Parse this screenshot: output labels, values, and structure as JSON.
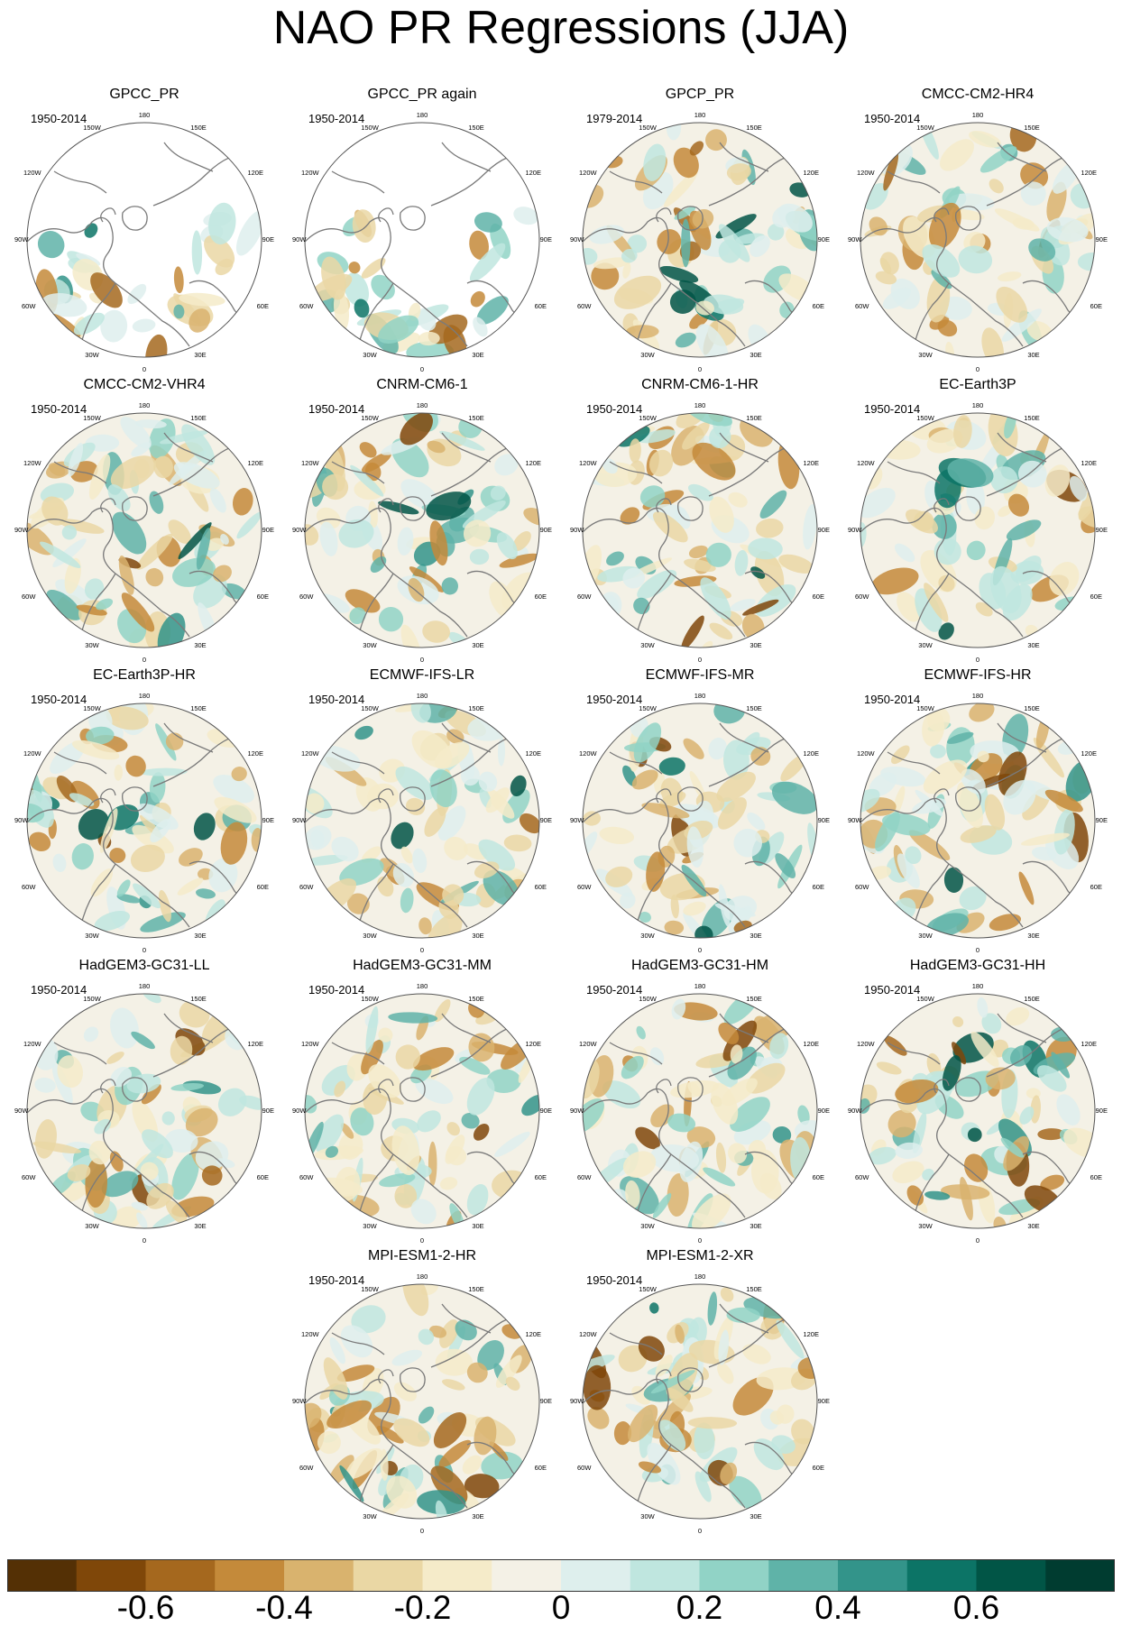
{
  "title": "NAO PR Regressions (JJA)",
  "grid_labels": {
    "top": "180",
    "upper_left": "150W",
    "upper_right": "150E",
    "mid_upper_left": "120W",
    "mid_upper_right": "120E",
    "left": "90W",
    "right": "90E",
    "lower_left": "60W",
    "lower_right": "60E",
    "bottom_left": "30W",
    "bottom_right": "30E",
    "bottom": "0"
  },
  "panels": [
    {
      "title": "GPCC_PR",
      "period": "1950-2014",
      "coverage": "land"
    },
    {
      "title": "GPCC_PR again",
      "period": "1950-2014",
      "coverage": "land"
    },
    {
      "title": "GPCP_PR",
      "period": "1979-2014",
      "coverage": "global"
    },
    {
      "title": "CMCC-CM2-HR4",
      "period": "1950-2014",
      "coverage": "global"
    },
    {
      "title": "CMCC-CM2-VHR4",
      "period": "1950-2014",
      "coverage": "global"
    },
    {
      "title": "CNRM-CM6-1",
      "period": "1950-2014",
      "coverage": "global"
    },
    {
      "title": "CNRM-CM6-1-HR",
      "period": "1950-2014",
      "coverage": "global"
    },
    {
      "title": "EC-Earth3P",
      "period": "1950-2014",
      "coverage": "global"
    },
    {
      "title": "EC-Earth3P-HR",
      "period": "1950-2014",
      "coverage": "global"
    },
    {
      "title": "ECMWF-IFS-LR",
      "period": "1950-2014",
      "coverage": "global"
    },
    {
      "title": "ECMWF-IFS-MR",
      "period": "1950-2014",
      "coverage": "global"
    },
    {
      "title": "ECMWF-IFS-HR",
      "period": "1950-2014",
      "coverage": "global"
    },
    {
      "title": "HadGEM3-GC31-LL",
      "period": "1950-2014",
      "coverage": "global"
    },
    {
      "title": "HadGEM3-GC31-MM",
      "period": "1950-2014",
      "coverage": "global"
    },
    {
      "title": "HadGEM3-GC31-HM",
      "period": "1950-2014",
      "coverage": "global"
    },
    {
      "title": "HadGEM3-GC31-HH",
      "period": "1950-2014",
      "coverage": "global"
    },
    {
      "title": "MPI-ESM1-2-HR",
      "period": "1950-2014",
      "coverage": "global"
    },
    {
      "title": "MPI-ESM1-2-XR",
      "period": "1950-2014",
      "coverage": "global"
    }
  ],
  "colorbar": {
    "colors": [
      "#543005",
      "#7f4709",
      "#a5681e",
      "#c48a3a",
      "#d9b36e",
      "#ead7a4",
      "#f5ebc9",
      "#f4f1e6",
      "#deefed",
      "#bfe6df",
      "#91d3c6",
      "#5fb3a8",
      "#33948a",
      "#0c7466",
      "#015546",
      "#003c30"
    ],
    "ticks": [
      {
        "value": -0.6,
        "label": "-0.6"
      },
      {
        "value": -0.4,
        "label": "-0.4"
      },
      {
        "value": -0.2,
        "label": "-0.2"
      },
      {
        "value": 0,
        "label": "0"
      },
      {
        "value": 0.2,
        "label": "0.2"
      },
      {
        "value": 0.4,
        "label": "0.4"
      },
      {
        "value": 0.6,
        "label": "0.6"
      }
    ],
    "min": -0.8,
    "max": 0.8
  }
}
